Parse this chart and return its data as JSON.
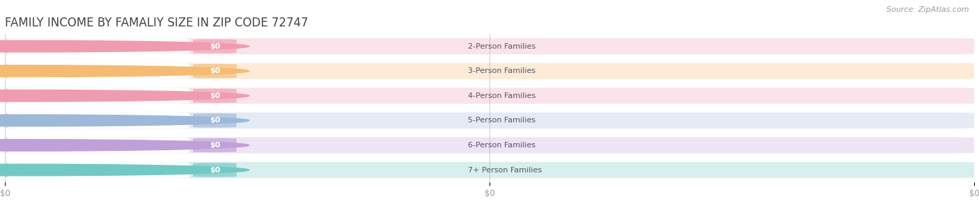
{
  "title": "FAMILY INCOME BY FAMALIY SIZE IN ZIP CODE 72747",
  "source_text": "Source: ZipAtlas.com",
  "categories": [
    "2-Person Families",
    "3-Person Families",
    "4-Person Families",
    "5-Person Families",
    "6-Person Families",
    "7+ Person Families"
  ],
  "values": [
    0,
    0,
    0,
    0,
    0,
    0
  ],
  "bar_colors": [
    "#f09cb0",
    "#f5bb72",
    "#f09cb0",
    "#9db8d9",
    "#c0a0d8",
    "#72c8c4"
  ],
  "background_color": "#ffffff",
  "bar_bg_color": "#eeeeee",
  "title_fontsize": 12,
  "label_fontsize": 8,
  "tick_fontsize": 8.5,
  "source_fontsize": 8
}
